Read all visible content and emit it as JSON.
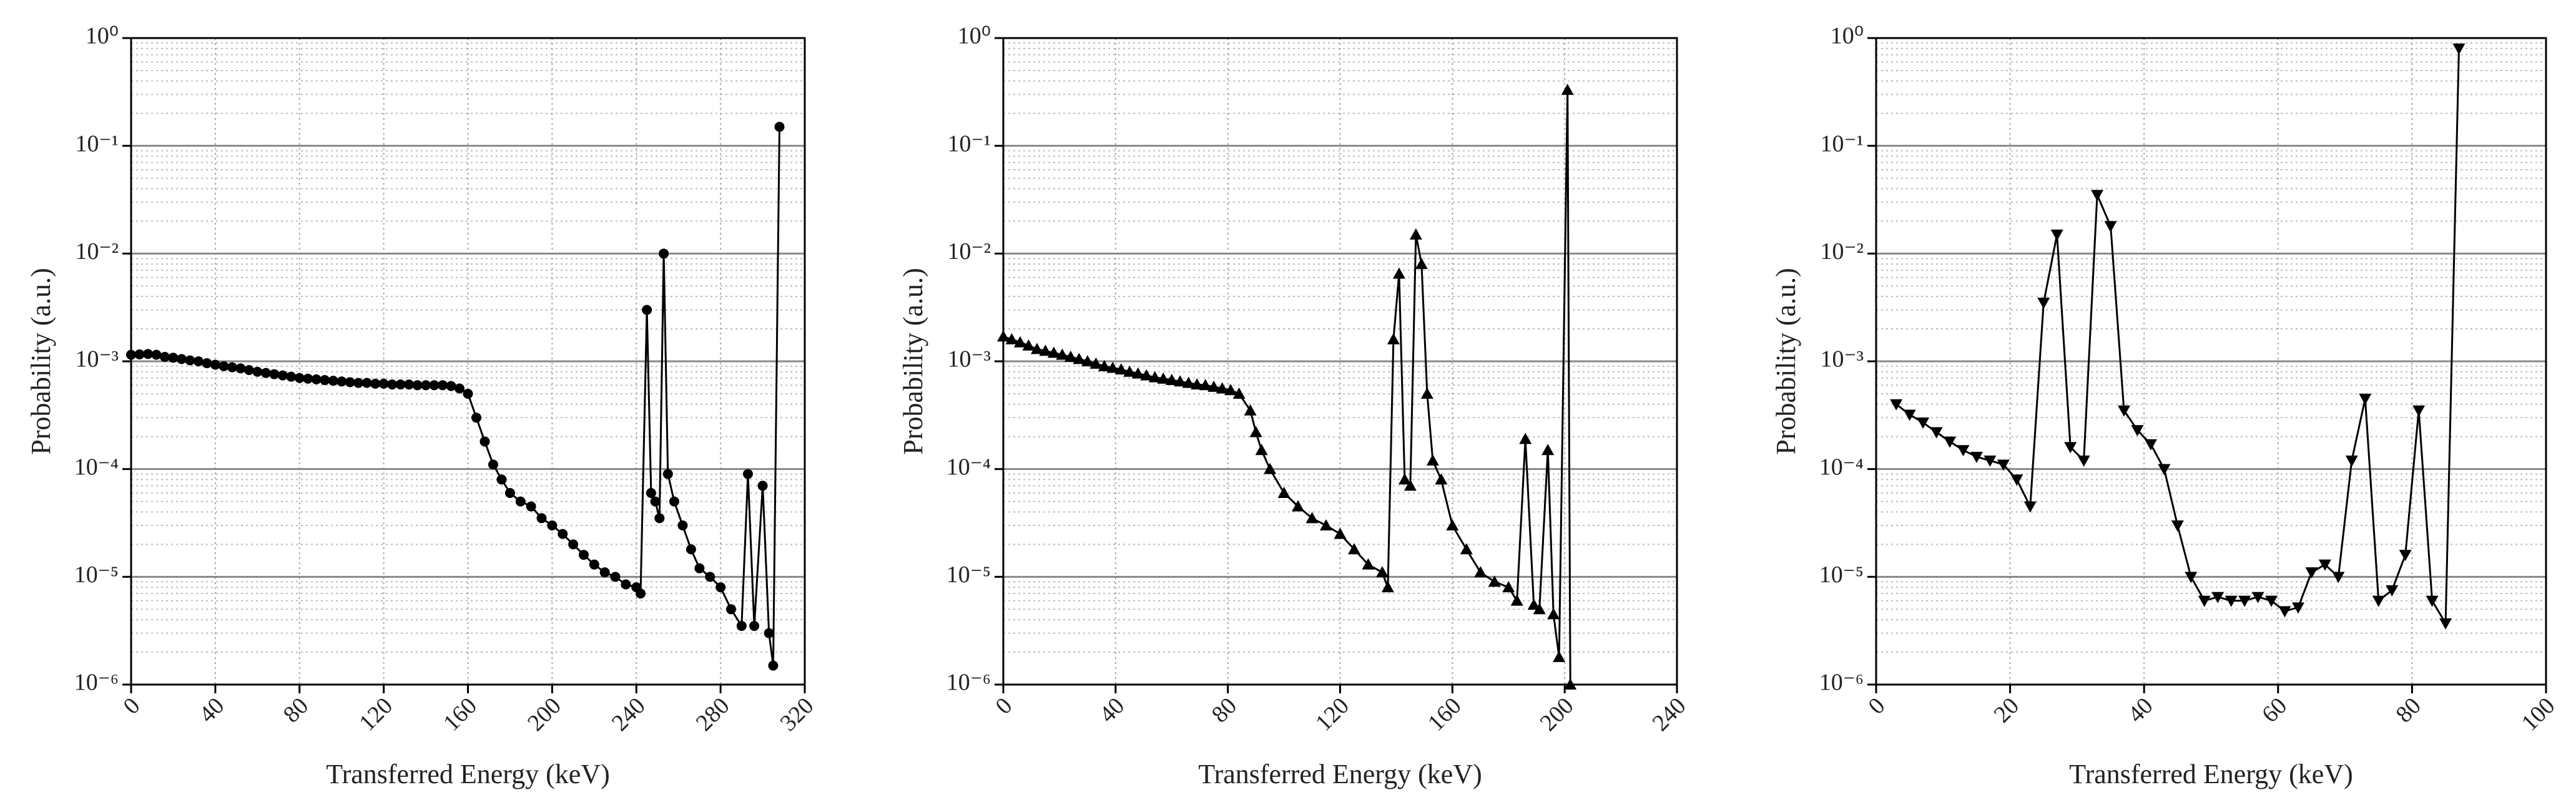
{
  "chart_data": [
    {
      "type": "line",
      "marker": "circle",
      "color": "#000000",
      "x_label": "Transferred Energy (keV)",
      "y_label": "Probability (a.u.)",
      "log_y": true,
      "grid": true,
      "xlim": [
        0,
        320
      ],
      "xticks": [
        0,
        40,
        80,
        120,
        160,
        200,
        240,
        280,
        320
      ],
      "ylim": [
        1e-06,
        1
      ],
      "yticks": [
        {
          "value": 1e-06,
          "label": "10⁻⁶"
        },
        {
          "value": 1e-05,
          "label": "10⁻⁵"
        },
        {
          "value": 0.0001,
          "label": "10⁻⁴"
        },
        {
          "value": 0.001,
          "label": "10⁻³"
        },
        {
          "value": 0.01,
          "label": "10⁻²"
        },
        {
          "value": 0.1,
          "label": "10⁻¹"
        },
        {
          "value": 1,
          "label": "10⁰"
        }
      ],
      "x": [
        0,
        4,
        8,
        12,
        16,
        20,
        24,
        28,
        32,
        36,
        40,
        44,
        48,
        52,
        56,
        60,
        64,
        68,
        72,
        76,
        80,
        84,
        88,
        92,
        96,
        100,
        104,
        108,
        112,
        116,
        120,
        124,
        128,
        132,
        136,
        140,
        144,
        148,
        152,
        156,
        160,
        164,
        168,
        172,
        176,
        180,
        185,
        190,
        195,
        200,
        205,
        210,
        215,
        220,
        225,
        230,
        235,
        240,
        242,
        245,
        247,
        249,
        251,
        253,
        255,
        258,
        262,
        266,
        270,
        275,
        280,
        285,
        290,
        293,
        296,
        300,
        303,
        305,
        308
      ],
      "values": [
        0.00115,
        0.00116,
        0.00117,
        0.00115,
        0.0011,
        0.00108,
        0.00105,
        0.00102,
        0.001,
        0.00096,
        0.00093,
        0.0009,
        0.00088,
        0.00086,
        0.00083,
        0.0008,
        0.00078,
        0.00076,
        0.00074,
        0.00072,
        0.0007,
        0.00069,
        0.00068,
        0.00067,
        0.00066,
        0.00065,
        0.00064,
        0.00063,
        0.00063,
        0.00062,
        0.00062,
        0.00061,
        0.00061,
        0.00061,
        0.0006,
        0.0006,
        0.0006,
        0.0006,
        0.00059,
        0.00056,
        0.0005,
        0.0003,
        0.00018,
        0.00011,
        8e-05,
        6e-05,
        5e-05,
        4.5e-05,
        3.5e-05,
        3e-05,
        2.5e-05,
        2e-05,
        1.6e-05,
        1.3e-05,
        1.1e-05,
        1e-05,
        8.5e-06,
        8e-06,
        7e-06,
        0.003,
        6e-05,
        5e-05,
        3.5e-05,
        0.01,
        9e-05,
        5e-05,
        3e-05,
        1.8e-05,
        1.2e-05,
        1e-05,
        8e-06,
        5e-06,
        3.5e-06,
        9e-05,
        3.5e-06,
        7e-05,
        3e-06,
        1.5e-06,
        0.15
      ]
    },
    {
      "type": "line",
      "marker": "triangle-up",
      "color": "#000000",
      "x_label": "Transferred Energy (keV)",
      "y_label": "Probability (a.u.)",
      "log_y": true,
      "grid": true,
      "xlim": [
        0,
        240
      ],
      "xticks": [
        0,
        40,
        80,
        120,
        160,
        200,
        240
      ],
      "ylim": [
        1e-06,
        1
      ],
      "yticks": [
        {
          "value": 1e-06,
          "label": "10⁻⁶"
        },
        {
          "value": 1e-05,
          "label": "10⁻⁵"
        },
        {
          "value": 0.0001,
          "label": "10⁻⁴"
        },
        {
          "value": 0.001,
          "label": "10⁻³"
        },
        {
          "value": 0.01,
          "label": "10⁻²"
        },
        {
          "value": 0.1,
          "label": "10⁻¹"
        },
        {
          "value": 1,
          "label": "10⁰"
        }
      ],
      "x": [
        0,
        3,
        6,
        9,
        12,
        15,
        18,
        21,
        24,
        27,
        30,
        33,
        36,
        39,
        42,
        45,
        48,
        51,
        54,
        57,
        60,
        63,
        66,
        69,
        72,
        75,
        78,
        81,
        84,
        88,
        90,
        92,
        95,
        100,
        105,
        110,
        115,
        120,
        125,
        130,
        135,
        137,
        139,
        141,
        143,
        145,
        147,
        149,
        151,
        153,
        156,
        160,
        165,
        170,
        175,
        180,
        183,
        186,
        189,
        191,
        194,
        196,
        198,
        201,
        202
      ],
      "values": [
        0.0017,
        0.0016,
        0.0015,
        0.0014,
        0.0013,
        0.00125,
        0.0012,
        0.00115,
        0.0011,
        0.00105,
        0.001,
        0.00095,
        0.0009,
        0.00087,
        0.00084,
        0.0008,
        0.00077,
        0.00074,
        0.00071,
        0.00069,
        0.00067,
        0.00065,
        0.00063,
        0.00061,
        0.0006,
        0.00058,
        0.00056,
        0.00054,
        0.0005,
        0.00035,
        0.00022,
        0.00015,
        0.0001,
        6e-05,
        4.5e-05,
        3.5e-05,
        3e-05,
        2.5e-05,
        1.8e-05,
        1.3e-05,
        1.1e-05,
        8e-06,
        0.0016,
        0.0065,
        8e-05,
        7e-05,
        0.015,
        0.008,
        0.0005,
        0.00012,
        8e-05,
        3e-05,
        1.8e-05,
        1.1e-05,
        9e-06,
        8e-06,
        6e-06,
        0.00019,
        5.5e-06,
        5e-06,
        0.00015,
        4.5e-06,
        1.8e-06,
        0.33,
        1e-06
      ]
    },
    {
      "type": "line",
      "marker": "triangle-down",
      "color": "#000000",
      "x_label": "Transferred Energy (keV)",
      "y_label": "Probability (a.u.)",
      "log_y": true,
      "grid": true,
      "xlim": [
        0,
        100
      ],
      "xticks": [
        0,
        20,
        40,
        60,
        80,
        100
      ],
      "ylim": [
        1e-06,
        1
      ],
      "yticks": [
        {
          "value": 1e-06,
          "label": "10⁻⁶"
        },
        {
          "value": 1e-05,
          "label": "10⁻⁵"
        },
        {
          "value": 0.0001,
          "label": "10⁻⁴"
        },
        {
          "value": 0.001,
          "label": "10⁻³"
        },
        {
          "value": 0.01,
          "label": "10⁻²"
        },
        {
          "value": 0.1,
          "label": "10⁻¹"
        },
        {
          "value": 1,
          "label": "10⁰"
        }
      ],
      "x": [
        3,
        5,
        7,
        9,
        11,
        13,
        15,
        17,
        19,
        21,
        23,
        25,
        27,
        29,
        31,
        33,
        35,
        37,
        39,
        41,
        43,
        45,
        47,
        49,
        51,
        53,
        55,
        57,
        59,
        61,
        63,
        65,
        67,
        69,
        71,
        73,
        75,
        77,
        79,
        81,
        83,
        85,
        87
      ],
      "values": [
        0.0004,
        0.00032,
        0.00027,
        0.00022,
        0.00018,
        0.00015,
        0.00013,
        0.00012,
        0.00011,
        8e-05,
        4.5e-05,
        0.0035,
        0.015,
        0.00016,
        0.00012,
        0.035,
        0.018,
        0.00035,
        0.00023,
        0.00017,
        0.0001,
        3e-05,
        1e-05,
        6e-06,
        6.5e-06,
        6e-06,
        6e-06,
        6.5e-06,
        6e-06,
        4.8e-06,
        5.2e-06,
        1.1e-05,
        1.3e-05,
        1e-05,
        0.00012,
        0.00045,
        6e-06,
        7.5e-06,
        1.6e-05,
        0.00035,
        6e-06,
        3.7e-06,
        0.8
      ]
    }
  ]
}
